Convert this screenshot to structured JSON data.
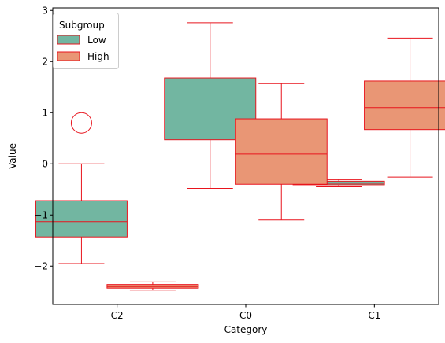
{
  "chart_data": {
    "type": "box",
    "xlabel": "Category",
    "ylabel": "Value",
    "categories": [
      "C2",
      "C0",
      "C1"
    ],
    "ylim": [
      -2.75,
      3.05
    ],
    "yticks": [
      -2,
      -1,
      0,
      1,
      2,
      3
    ],
    "ytick_labels": [
      "−2",
      "−1",
      "0",
      "1",
      "2",
      "3"
    ],
    "grid": false,
    "legend": {
      "title": "Subgroup",
      "position": "top-left"
    },
    "edge_color": "#e8141d",
    "series": [
      {
        "name": "Low",
        "color": "#72b6a1",
        "boxes": [
          {
            "category": "C2",
            "whislo": -1.95,
            "q1": -1.43,
            "med": -1.13,
            "q3": -0.72,
            "whishi": 0.0,
            "fliers": [
              0.8
            ]
          },
          {
            "category": "C0",
            "whislo": -0.48,
            "q1": 0.47,
            "med": 0.78,
            "q3": 1.68,
            "whishi": 2.76,
            "fliers": []
          },
          {
            "category": "C1",
            "whislo": -0.45,
            "q1": -0.41,
            "med": -0.38,
            "q3": -0.34,
            "whishi": -0.31,
            "fliers": []
          }
        ]
      },
      {
        "name": "High",
        "color": "#e99675",
        "boxes": [
          {
            "category": "C2",
            "whislo": -2.47,
            "q1": -2.43,
            "med": -2.4,
            "q3": -2.36,
            "whishi": -2.31,
            "fliers": []
          },
          {
            "category": "C0",
            "whislo": -1.1,
            "q1": -0.4,
            "med": 0.19,
            "q3": 0.88,
            "whishi": 1.57,
            "fliers": []
          },
          {
            "category": "C1",
            "whislo": -0.26,
            "q1": 0.67,
            "med": 1.1,
            "q3": 1.62,
            "whishi": 2.46,
            "fliers": []
          }
        ]
      }
    ]
  }
}
